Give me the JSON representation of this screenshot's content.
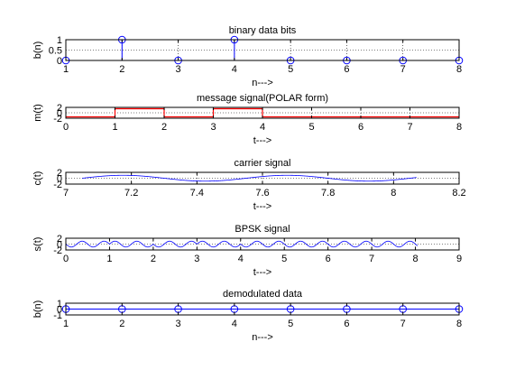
{
  "chart_data": [
    {
      "type": "stem",
      "title": "binary data bits",
      "xlabel": "n--->",
      "ylabel": "b(n)",
      "xlim": [
        1,
        8
      ],
      "ylim": [
        0,
        1
      ],
      "xticks": [
        1,
        2,
        3,
        4,
        5,
        6,
        7,
        8
      ],
      "yticks": [
        "0",
        "0.5",
        "1"
      ],
      "x": [
        1,
        2,
        3,
        4,
        5,
        6,
        7,
        8
      ],
      "values": [
        0,
        1,
        0,
        1,
        0,
        0,
        0,
        0
      ],
      "grid": true,
      "color": "#0000ff"
    },
    {
      "type": "line",
      "title": "message signal(POLAR form)",
      "xlabel": "t--->",
      "ylabel": "m(t)",
      "xlim": [
        0,
        8
      ],
      "ylim": [
        -2,
        2
      ],
      "xticks": [
        0,
        1,
        2,
        3,
        4,
        5,
        6,
        7,
        8
      ],
      "yticks": [
        "-2",
        "0",
        "2"
      ],
      "bits": [
        -1,
        1,
        -1,
        1,
        -1,
        -1,
        -1,
        -1
      ],
      "grid": true,
      "color": "#ff0000"
    },
    {
      "type": "line",
      "title": "carrier signal",
      "xlabel": "t--->",
      "ylabel": "c(t)",
      "xlim": [
        7,
        8.2
      ],
      "ylim": [
        -2,
        2
      ],
      "xticks": [
        7,
        7.2,
        7.4,
        7.6,
        7.8,
        8,
        8.2
      ],
      "xtick_labels": [
        "7",
        "7.2",
        "7.4",
        "7.6",
        "7.8",
        "8",
        "8.2"
      ],
      "yticks": [
        "-2",
        "0",
        "2"
      ],
      "x_range": [
        7.05,
        8.07
      ],
      "period": 0.5,
      "amplitude": 1,
      "grid": true,
      "color": "#0000ff"
    },
    {
      "type": "line",
      "title": "BPSK signal",
      "xlabel": "t--->",
      "ylabel": "s(t)",
      "xlim": [
        0,
        9
      ],
      "ylim": [
        -2,
        2
      ],
      "xticks": [
        0,
        1,
        2,
        3,
        4,
        5,
        6,
        7,
        8,
        9
      ],
      "yticks": [
        "-2",
        "0",
        "2"
      ],
      "x_range": [
        0,
        8.05
      ],
      "period": 0.5,
      "amplitude": 1,
      "grid": true,
      "color": "#0000ff"
    },
    {
      "type": "stem",
      "title": "demodulated data",
      "xlabel": "n--->",
      "ylabel": "b(n)",
      "xlim": [
        1,
        8
      ],
      "ylim": [
        -1,
        1
      ],
      "xticks": [
        1,
        2,
        3,
        4,
        5,
        6,
        7,
        8
      ],
      "yticks": [
        "-1",
        "0",
        "1"
      ],
      "x": [
        1,
        2,
        3,
        4,
        5,
        6,
        7,
        8
      ],
      "values": [
        0,
        0,
        0,
        0,
        0,
        0,
        0,
        0
      ],
      "grid": true,
      "color": "#0000ff"
    }
  ]
}
